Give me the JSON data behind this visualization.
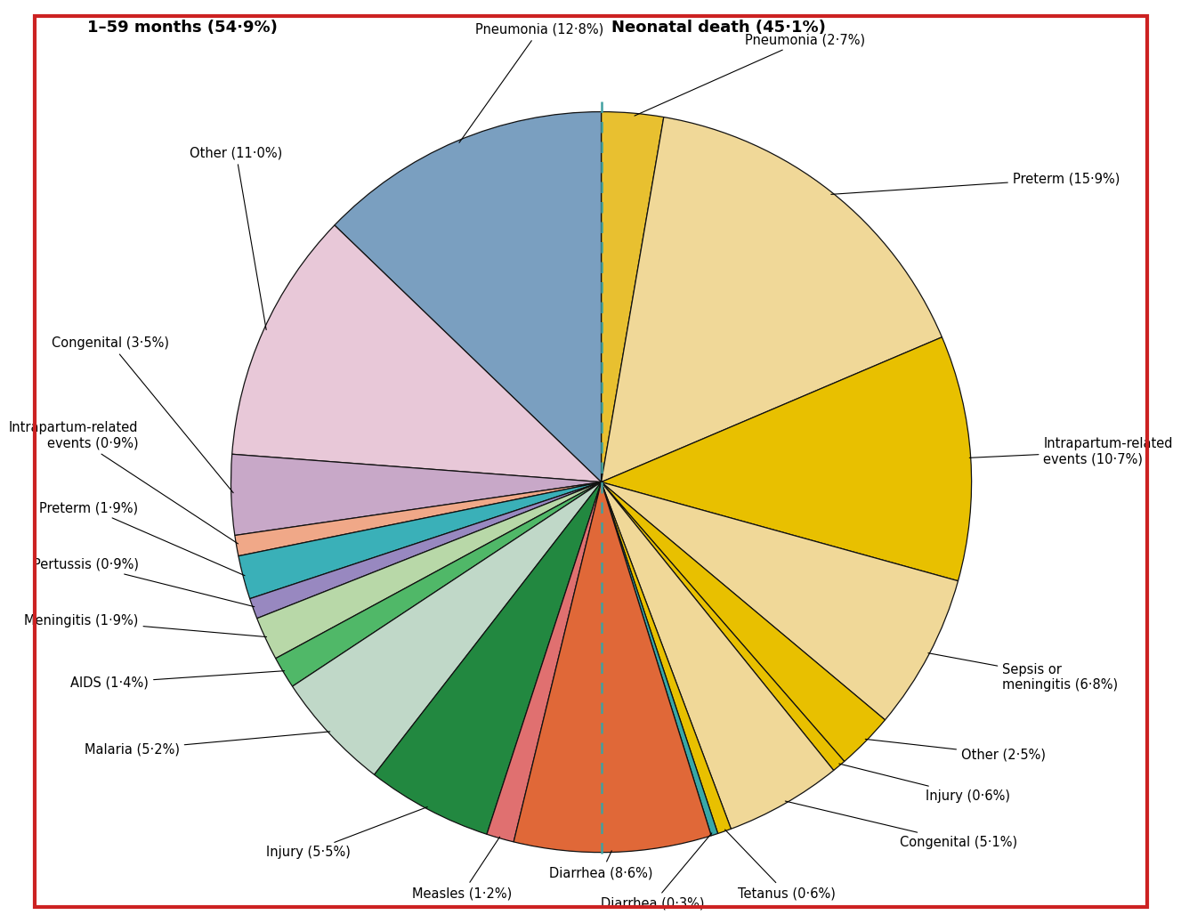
{
  "title_left": "1–59 months (54·9%)",
  "title_right": "Neonatal death (45·1%)",
  "background_color": "#ffffff",
  "border_color": "#cc0000",
  "left_slices": [
    {
      "label": "Pneumonia (12·8%)",
      "value": 12.8,
      "color": "#7a9fc0"
    },
    {
      "label": "Other (11·0%)",
      "value": 11.0,
      "color": "#e8c8d8"
    },
    {
      "label": "Congenital (3·5%)",
      "value": 3.5,
      "color": "#c8a8c8"
    },
    {
      "label": "Intrapartum-related\nevents (0·9%)",
      "value": 0.9,
      "color": "#f0a888"
    },
    {
      "label": "Preterm (1·9%)",
      "value": 1.9,
      "color": "#3ab0b8"
    },
    {
      "label": "Pertussis (0·9%)",
      "value": 0.9,
      "color": "#9888c0"
    },
    {
      "label": "Meningitis (1·9%)",
      "value": 1.9,
      "color": "#b8d8a8"
    },
    {
      "label": "AIDS (1·4%)",
      "value": 1.4,
      "color": "#50b868"
    },
    {
      "label": "Malaria (5·2%)",
      "value": 5.2,
      "color": "#c0d8c8"
    },
    {
      "label": "Injury (5·5%)",
      "value": 5.5,
      "color": "#228840"
    },
    {
      "label": "Measles (1·2%)",
      "value": 1.2,
      "color": "#e07070"
    },
    {
      "label": "Diarrhea (8·6%)",
      "value": 8.6,
      "color": "#e06838"
    }
  ],
  "right_slices": [
    {
      "label": "Pneumonia (2·7%)",
      "value": 2.7,
      "color": "#e8c030"
    },
    {
      "label": "Preterm (15·9%)",
      "value": 15.9,
      "color": "#f0d898"
    },
    {
      "label": "Intrapartum-related\nevents (10·7%)",
      "value": 10.7,
      "color": "#e8c000"
    },
    {
      "label": "Sepsis or\nmeningitis (6·8%)",
      "value": 6.8,
      "color": "#f0d898"
    },
    {
      "label": "Other (2·5%)",
      "value": 2.5,
      "color": "#e8c000"
    },
    {
      "label": "Injury (0·6%)",
      "value": 0.6,
      "color": "#e8c000"
    },
    {
      "label": "Congenital (5·1%)",
      "value": 5.1,
      "color": "#f0d898"
    },
    {
      "label": "Tetanus (0·6%)",
      "value": 0.6,
      "color": "#e8c000"
    },
    {
      "label": "Diarrhea (0·3%)",
      "value": 0.3,
      "color": "#38a8a8"
    }
  ]
}
